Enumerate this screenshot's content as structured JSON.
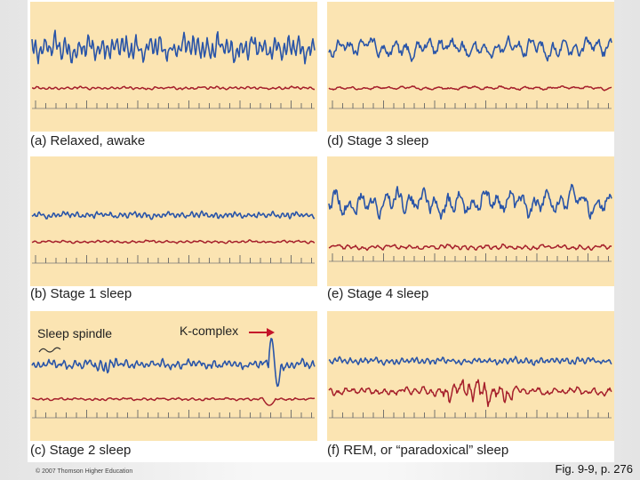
{
  "panels": [
    {
      "id": "a",
      "caption": "(a) Relaxed, awake",
      "blue": {
        "amp": 14,
        "freq": 1.3,
        "seed": 1
      },
      "red": {
        "amp": 1.6,
        "freq": 1.0,
        "seed": 2
      }
    },
    {
      "id": "d",
      "caption": "(d) Stage 3 sleep",
      "blue": {
        "amp": 11,
        "freq": 0.55,
        "seed": 3
      },
      "red": {
        "amp": 2.0,
        "freq": 0.5,
        "seed": 4
      }
    },
    {
      "id": "b",
      "caption": "(b) Stage 1 sleep",
      "blue": {
        "amp": 3.5,
        "freq": 1.3,
        "seed": 5
      },
      "red": {
        "amp": 1.5,
        "freq": 0.9,
        "seed": 6
      }
    },
    {
      "id": "e",
      "caption": "(e) Stage 4 sleep",
      "blue": {
        "amp": 15,
        "freq": 0.5,
        "seed": 7
      },
      "red": {
        "amp": 3.0,
        "freq": 0.8,
        "seed": 8
      }
    },
    {
      "id": "c",
      "caption": "(c) Stage 2 sleep",
      "blue": {
        "amp": 5,
        "freq": 1.2,
        "seed": 9
      },
      "red": {
        "amp": 1.5,
        "freq": 0.9,
        "seed": 10
      }
    },
    {
      "id": "f",
      "caption": "(f) REM, or “paradoxical” sleep",
      "blue": {
        "amp": 4,
        "freq": 1.2,
        "seed": 11
      },
      "red": {
        "amp": 4.5,
        "freq": 0.8,
        "seed": 12
      }
    }
  ],
  "annotations": {
    "sleep_spindle": "Sleep spindle",
    "k_complex": "K-complex"
  },
  "copyright": "© 2007 Thomson Higher Education",
  "figure_ref": "Fig. 9-9, p. 276",
  "colors": {
    "blue": "#2a55a8",
    "red": "#a51f2b",
    "arrow": "#c4152a"
  }
}
